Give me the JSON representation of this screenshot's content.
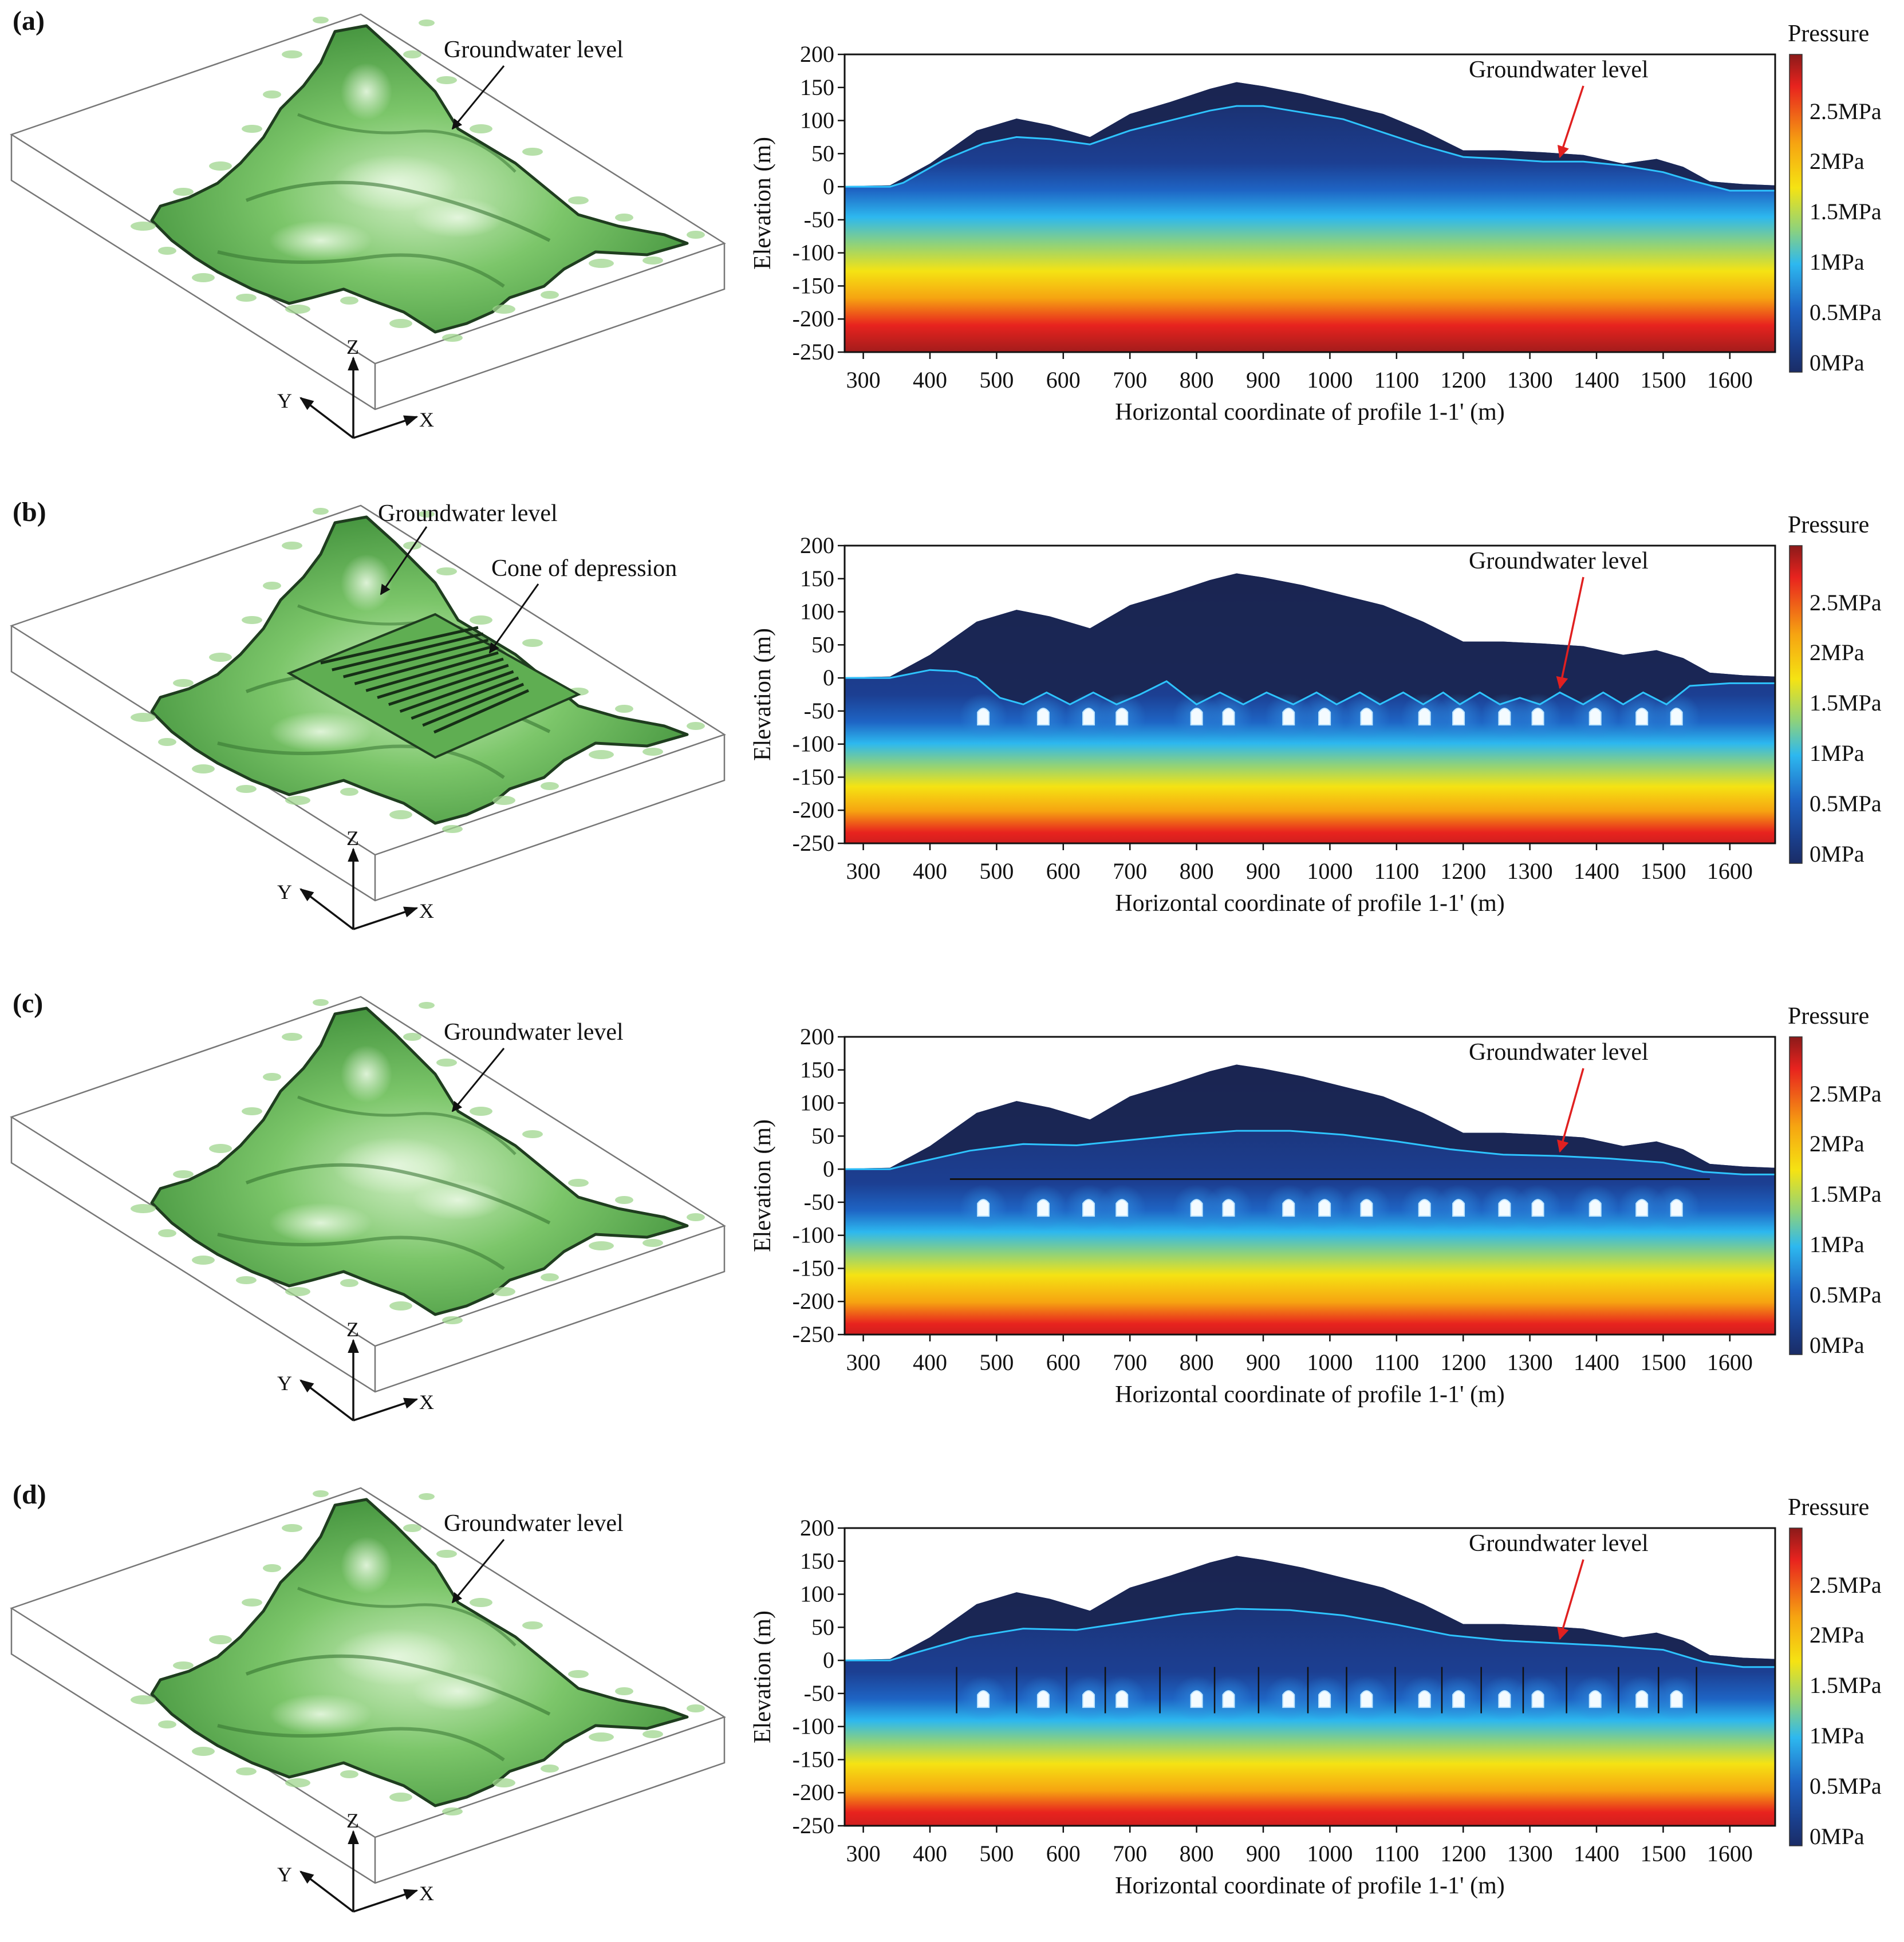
{
  "colors": {
    "terrain_light": "#b7dea7",
    "terrain_mid": "#6fbf5c",
    "terrain_dark": "#3f8f3a",
    "contour": "#1f3d1f",
    "sky_fill": "#1a2550",
    "gw_line": "#2ec4ff",
    "arrow_red": "#e02020",
    "tunnel": "#f4fbff"
  },
  "colorbar": {
    "title": "Pressure",
    "ticks": [
      "2.5MPa",
      "2MPa",
      "1.5MPa",
      "1MPa",
      "0.5MPa",
      "0MPa"
    ],
    "stops": [
      "#8b1a1a",
      "#e8231e",
      "#f6a411",
      "#f5e313",
      "#8fd27a",
      "#2db8ef",
      "#1e64c4",
      "#1a3f8c",
      "#1a2c66"
    ]
  },
  "axes": {
    "x_ticks": [
      300,
      400,
      500,
      600,
      700,
      800,
      900,
      1000,
      1100,
      1200,
      1300,
      1400,
      1500,
      1600
    ],
    "y_ticks": [
      200,
      150,
      100,
      50,
      0,
      -50,
      -100,
      -150,
      -200,
      -250
    ],
    "xlabel": "Horizontal coordinate of profile 1-1' (m)",
    "ylabel": "Elevation (m)",
    "xlim": [
      272,
      1668
    ],
    "ylim": [
      -250,
      200
    ]
  },
  "axis_letters": {
    "x": "X",
    "y": "Y",
    "z": "Z"
  },
  "panels": [
    {
      "id": "a",
      "label": "(a)",
      "left_labels": [
        "Groundwater level"
      ],
      "right_label": "Groundwater level"
    },
    {
      "id": "b",
      "label": "(b)",
      "left_labels": [
        "Groundwater level",
        "Cone of depression"
      ],
      "right_label": "Groundwater level"
    },
    {
      "id": "c",
      "label": "(c)",
      "left_labels": [
        "Groundwater level"
      ],
      "right_label": "Groundwater level"
    },
    {
      "id": "d",
      "label": "(d)",
      "left_labels": [
        "Groundwater level"
      ],
      "right_label": "Groundwater level"
    }
  ],
  "chart_data": [
    {
      "type": "area",
      "panel": "a",
      "title": "",
      "xlabel": "Horizontal coordinate of profile 1-1' (m)",
      "ylabel": "Elevation (m)",
      "xlim": [
        272,
        1668
      ],
      "ylim": [
        -250,
        200
      ],
      "series": [
        {
          "name": "Ground surface",
          "x": [
            272,
            340,
            400,
            470,
            530,
            580,
            640,
            700,
            760,
            820,
            860,
            900,
            960,
            1020,
            1080,
            1140,
            1200,
            1260,
            1320,
            1380,
            1440,
            1490,
            1530,
            1570,
            1620,
            1668
          ],
          "y": [
            1,
            2,
            35,
            85,
            103,
            93,
            75,
            110,
            128,
            148,
            158,
            152,
            140,
            125,
            110,
            85,
            55,
            55,
            52,
            48,
            35,
            42,
            30,
            8,
            4,
            2
          ]
        },
        {
          "name": "Groundwater level",
          "x": [
            272,
            340,
            360,
            420,
            480,
            530,
            580,
            640,
            700,
            760,
            820,
            860,
            900,
            960,
            1020,
            1080,
            1140,
            1200,
            1260,
            1320,
            1380,
            1440,
            1500,
            1540,
            1600,
            1668
          ],
          "y": [
            0,
            0,
            6,
            40,
            65,
            75,
            72,
            64,
            85,
            100,
            115,
            122,
            122,
            112,
            102,
            82,
            62,
            45,
            42,
            38,
            38,
            32,
            22,
            10,
            -6,
            -6
          ]
        }
      ],
      "tunnels_x": [],
      "curtain_x": []
    },
    {
      "type": "area",
      "panel": "b",
      "title": "",
      "xlabel": "Horizontal coordinate of profile 1-1' (m)",
      "ylabel": "Elevation (m)",
      "xlim": [
        272,
        1668
      ],
      "ylim": [
        -250,
        200
      ],
      "series": [
        {
          "name": "Ground surface",
          "x": [
            272,
            340,
            400,
            470,
            530,
            580,
            640,
            700,
            760,
            820,
            860,
            900,
            960,
            1020,
            1080,
            1140,
            1200,
            1260,
            1320,
            1380,
            1440,
            1490,
            1530,
            1570,
            1620,
            1668
          ],
          "y": [
            1,
            2,
            35,
            85,
            103,
            93,
            75,
            110,
            128,
            148,
            158,
            152,
            140,
            125,
            110,
            85,
            55,
            55,
            52,
            48,
            35,
            42,
            30,
            8,
            4,
            2
          ]
        },
        {
          "name": "Groundwater level",
          "x": [
            272,
            340,
            400,
            440,
            470,
            505,
            540,
            575,
            610,
            645,
            680,
            715,
            755,
            800,
            835,
            870,
            905,
            945,
            980,
            1010,
            1045,
            1075,
            1110,
            1140,
            1170,
            1195,
            1225,
            1255,
            1285,
            1315,
            1345,
            1380,
            1410,
            1440,
            1470,
            1505,
            1540,
            1600,
            1668
          ],
          "y": [
            0,
            0,
            12,
            10,
            0,
            -30,
            -40,
            -22,
            -40,
            -22,
            -40,
            -25,
            -5,
            -40,
            -22,
            -40,
            -22,
            -40,
            -22,
            -40,
            -22,
            -40,
            -22,
            -40,
            -22,
            -40,
            -22,
            -40,
            -30,
            -40,
            -22,
            -40,
            -22,
            -40,
            -22,
            -40,
            -12,
            -8,
            -8
          ]
        }
      ],
      "tunnels_x": [
        480,
        570,
        638,
        688,
        800,
        848,
        938,
        992,
        1055,
        1142,
        1193,
        1262,
        1312,
        1398,
        1468,
        1520
      ],
      "curtain_x": []
    },
    {
      "type": "area",
      "panel": "c",
      "title": "",
      "xlabel": "Horizontal coordinate of profile 1-1' (m)",
      "ylabel": "Elevation (m)",
      "xlim": [
        272,
        1668
      ],
      "ylim": [
        -250,
        200
      ],
      "series": [
        {
          "name": "Ground surface",
          "x": [
            272,
            340,
            400,
            470,
            530,
            580,
            640,
            700,
            760,
            820,
            860,
            900,
            960,
            1020,
            1080,
            1140,
            1200,
            1260,
            1320,
            1380,
            1440,
            1490,
            1530,
            1570,
            1620,
            1668
          ],
          "y": [
            1,
            2,
            35,
            85,
            103,
            93,
            75,
            110,
            128,
            148,
            158,
            152,
            140,
            125,
            110,
            85,
            55,
            55,
            52,
            48,
            35,
            42,
            30,
            8,
            4,
            2
          ]
        },
        {
          "name": "Groundwater level",
          "x": [
            272,
            340,
            380,
            460,
            540,
            620,
            700,
            780,
            860,
            940,
            1020,
            1100,
            1180,
            1260,
            1340,
            1420,
            1500,
            1560,
            1620,
            1668
          ],
          "y": [
            0,
            0,
            10,
            28,
            38,
            36,
            44,
            52,
            58,
            58,
            52,
            42,
            30,
            22,
            20,
            16,
            10,
            -4,
            -8,
            -8
          ]
        }
      ],
      "tunnels_x": [
        480,
        570,
        638,
        688,
        800,
        848,
        938,
        992,
        1055,
        1142,
        1193,
        1262,
        1312,
        1398,
        1468,
        1520
      ],
      "curtain_x": [],
      "grout_line": {
        "x": [
          430,
          1570
        ],
        "y": -15
      }
    },
    {
      "type": "area",
      "panel": "d",
      "title": "",
      "xlabel": "Horizontal coordinate of profile 1-1' (m)",
      "ylabel": "Elevation (m)",
      "xlim": [
        272,
        1668
      ],
      "ylim": [
        -250,
        200
      ],
      "series": [
        {
          "name": "Ground surface",
          "x": [
            272,
            340,
            400,
            470,
            530,
            580,
            640,
            700,
            760,
            820,
            860,
            900,
            960,
            1020,
            1080,
            1140,
            1200,
            1260,
            1320,
            1380,
            1440,
            1490,
            1530,
            1570,
            1620,
            1668
          ],
          "y": [
            1,
            2,
            35,
            85,
            103,
            93,
            75,
            110,
            128,
            148,
            158,
            152,
            140,
            125,
            110,
            85,
            55,
            55,
            52,
            48,
            35,
            42,
            30,
            8,
            4,
            2
          ]
        },
        {
          "name": "Groundwater level",
          "x": [
            272,
            340,
            380,
            460,
            540,
            620,
            700,
            780,
            860,
            940,
            1020,
            1100,
            1180,
            1260,
            1340,
            1420,
            1500,
            1560,
            1620,
            1668
          ],
          "y": [
            0,
            0,
            12,
            35,
            48,
            46,
            58,
            70,
            78,
            76,
            68,
            54,
            38,
            30,
            26,
            22,
            16,
            -2,
            -10,
            -10
          ]
        }
      ],
      "tunnels_x": [
        480,
        570,
        638,
        688,
        800,
        848,
        938,
        992,
        1055,
        1142,
        1193,
        1262,
        1312,
        1398,
        1468,
        1520
      ],
      "curtain_x": [
        440,
        530,
        605,
        663,
        745,
        827,
        893,
        967,
        1025,
        1098,
        1168,
        1227,
        1290,
        1355,
        1433,
        1493,
        1550
      ]
    }
  ]
}
